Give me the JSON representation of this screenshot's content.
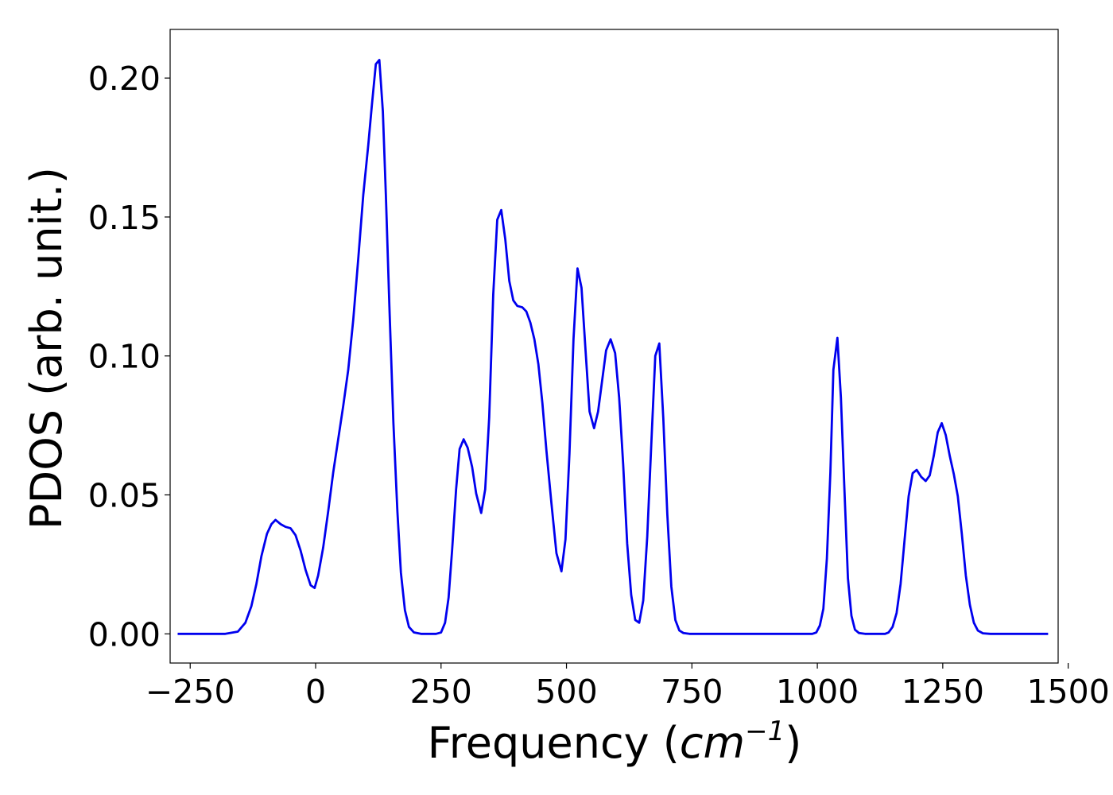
{
  "chart_data": {
    "type": "line",
    "title": "",
    "xlabel": "Frequency",
    "xlabel_unit_base": "cm",
    "xlabel_unit_exp": "−1",
    "ylabel": "PDOS (arb. unit.)",
    "xlim": [
      -290,
      1480
    ],
    "ylim": [
      -0.0105,
      0.2175
    ],
    "grid": false,
    "legend": "none",
    "x_ticks": [
      -250,
      0,
      250,
      500,
      750,
      1000,
      1250,
      1500
    ],
    "x_tick_labels": [
      "−250",
      "0",
      "250",
      "500",
      "750",
      "1000",
      "1250",
      "1500"
    ],
    "y_ticks": [
      0.0,
      0.05,
      0.1,
      0.15,
      0.2
    ],
    "y_tick_labels": [
      "0.00",
      "0.05",
      "0.10",
      "0.15",
      "0.20"
    ],
    "series": [
      {
        "color": "#0000ee",
        "points": [
          [
            -275,
            0.0
          ],
          [
            -180,
            0.0
          ],
          [
            -155,
            0.0008
          ],
          [
            -140,
            0.004
          ],
          [
            -128,
            0.01
          ],
          [
            -118,
            0.018
          ],
          [
            -108,
            0.028
          ],
          [
            -97,
            0.036
          ],
          [
            -88,
            0.0395
          ],
          [
            -80,
            0.041
          ],
          [
            -70,
            0.0395
          ],
          [
            -60,
            0.0385
          ],
          [
            -50,
            0.038
          ],
          [
            -40,
            0.0355
          ],
          [
            -30,
            0.03
          ],
          [
            -20,
            0.023
          ],
          [
            -10,
            0.0175
          ],
          [
            -2,
            0.0165
          ],
          [
            5,
            0.021
          ],
          [
            15,
            0.031
          ],
          [
            25,
            0.044
          ],
          [
            35,
            0.058
          ],
          [
            45,
            0.07
          ],
          [
            55,
            0.082
          ],
          [
            65,
            0.095
          ],
          [
            75,
            0.113
          ],
          [
            85,
            0.135
          ],
          [
            95,
            0.158
          ],
          [
            105,
            0.176
          ],
          [
            112,
            0.19
          ],
          [
            120,
            0.205
          ],
          [
            127,
            0.2065
          ],
          [
            134,
            0.188
          ],
          [
            140,
            0.158
          ],
          [
            147,
            0.118
          ],
          [
            155,
            0.076
          ],
          [
            163,
            0.044
          ],
          [
            170,
            0.022
          ],
          [
            178,
            0.0085
          ],
          [
            186,
            0.0025
          ],
          [
            196,
            0.0005
          ],
          [
            210,
            0.0
          ],
          [
            240,
            0.0
          ],
          [
            250,
            0.0005
          ],
          [
            258,
            0.004
          ],
          [
            265,
            0.013
          ],
          [
            272,
            0.03
          ],
          [
            280,
            0.052
          ],
          [
            287,
            0.0665
          ],
          [
            295,
            0.07
          ],
          [
            303,
            0.067
          ],
          [
            312,
            0.06
          ],
          [
            320,
            0.0505
          ],
          [
            330,
            0.0435
          ],
          [
            338,
            0.052
          ],
          [
            346,
            0.078
          ],
          [
            354,
            0.122
          ],
          [
            362,
            0.149
          ],
          [
            370,
            0.1525
          ],
          [
            378,
            0.142
          ],
          [
            386,
            0.127
          ],
          [
            394,
            0.12
          ],
          [
            402,
            0.118
          ],
          [
            412,
            0.1175
          ],
          [
            420,
            0.116
          ],
          [
            428,
            0.112
          ],
          [
            436,
            0.106
          ],
          [
            444,
            0.097
          ],
          [
            452,
            0.083
          ],
          [
            460,
            0.066
          ],
          [
            470,
            0.047
          ],
          [
            480,
            0.029
          ],
          [
            490,
            0.0225
          ],
          [
            498,
            0.034
          ],
          [
            506,
            0.065
          ],
          [
            514,
            0.106
          ],
          [
            522,
            0.1315
          ],
          [
            530,
            0.1245
          ],
          [
            538,
            0.102
          ],
          [
            546,
            0.08
          ],
          [
            555,
            0.074
          ],
          [
            563,
            0.08
          ],
          [
            571,
            0.091
          ],
          [
            579,
            0.102
          ],
          [
            588,
            0.106
          ],
          [
            597,
            0.101
          ],
          [
            605,
            0.085
          ],
          [
            613,
            0.061
          ],
          [
            621,
            0.0325
          ],
          [
            629,
            0.014
          ],
          [
            637,
            0.005
          ],
          [
            645,
            0.004
          ],
          [
            653,
            0.012
          ],
          [
            661,
            0.035
          ],
          [
            669,
            0.068
          ],
          [
            677,
            0.1
          ],
          [
            685,
            0.1045
          ],
          [
            693,
            0.0775
          ],
          [
            701,
            0.043
          ],
          [
            709,
            0.017
          ],
          [
            717,
            0.005
          ],
          [
            725,
            0.0012
          ],
          [
            733,
            0.0003
          ],
          [
            745,
            0.0
          ],
          [
            990,
            0.0
          ],
          [
            998,
            0.0005
          ],
          [
            1005,
            0.003
          ],
          [
            1012,
            0.009
          ],
          [
            1019,
            0.027
          ],
          [
            1026,
            0.058
          ],
          [
            1032,
            0.095
          ],
          [
            1040,
            0.1065
          ],
          [
            1047,
            0.085
          ],
          [
            1054,
            0.052
          ],
          [
            1061,
            0.02
          ],
          [
            1068,
            0.0065
          ],
          [
            1075,
            0.0015
          ],
          [
            1083,
            0.0003
          ],
          [
            1095,
            0.0
          ],
          [
            1135,
            0.0
          ],
          [
            1142,
            0.0005
          ],
          [
            1150,
            0.0025
          ],
          [
            1158,
            0.0075
          ],
          [
            1166,
            0.018
          ],
          [
            1174,
            0.034
          ],
          [
            1182,
            0.0495
          ],
          [
            1190,
            0.0578
          ],
          [
            1198,
            0.059
          ],
          [
            1207,
            0.0565
          ],
          [
            1216,
            0.055
          ],
          [
            1224,
            0.057
          ],
          [
            1232,
            0.064
          ],
          [
            1240,
            0.0725
          ],
          [
            1248,
            0.0758
          ],
          [
            1256,
            0.0715
          ],
          [
            1264,
            0.064
          ],
          [
            1272,
            0.0575
          ],
          [
            1280,
            0.0495
          ],
          [
            1288,
            0.036
          ],
          [
            1296,
            0.021
          ],
          [
            1304,
            0.0105
          ],
          [
            1312,
            0.004
          ],
          [
            1320,
            0.0012
          ],
          [
            1330,
            0.0002
          ],
          [
            1345,
            0.0
          ],
          [
            1460,
            0.0
          ]
        ]
      }
    ]
  }
}
